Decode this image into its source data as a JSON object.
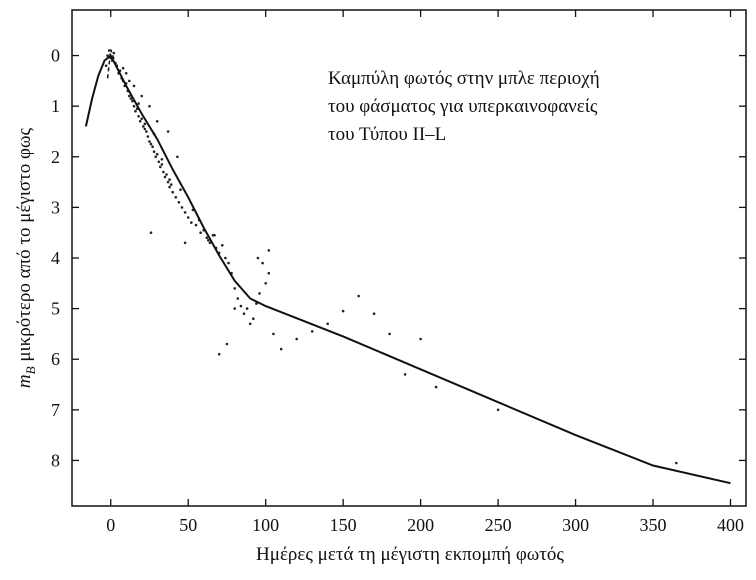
{
  "chart_data": {
    "type": "scatter",
    "title": "",
    "annotation": [
      "Καμπύλη φωτός στην μπλε περιοχή",
      "του φάσματος για υπερκαινοφανείς",
      "του Τύπου II–L"
    ],
    "xlabel": "Ημέρες μετά τη μέγιστη εκπομπή φωτός",
    "ylabel_main": "m",
    "ylabel_sub": "B",
    "ylabel_rest": " μικρότερο από το μέγιστο φως",
    "xlim": [
      -25,
      410
    ],
    "ylim": [
      -0.9,
      8.9
    ],
    "y_inverted": true,
    "grid": false,
    "x_ticks": [
      0,
      50,
      100,
      150,
      200,
      250,
      300,
      350,
      400
    ],
    "x_tick_labels": [
      "0",
      "50",
      "100",
      "150",
      "200",
      "250",
      "300",
      "350",
      "400"
    ],
    "y_ticks": [
      0,
      1,
      2,
      3,
      4,
      5,
      6,
      7,
      8
    ],
    "y_tick_labels": [
      "0",
      "1",
      "2",
      "3",
      "4",
      "5",
      "6",
      "7",
      "8"
    ],
    "series": [
      {
        "kind": "curve",
        "x": [
          -16,
          -12,
          -8,
          -4,
          0,
          5,
          10,
          20,
          30,
          40,
          50,
          60,
          70,
          80,
          90,
          100,
          150,
          200,
          250,
          300,
          350,
          400
        ],
        "y": [
          1.4,
          0.85,
          0.4,
          0.1,
          0.0,
          0.3,
          0.6,
          1.15,
          1.65,
          2.25,
          2.8,
          3.4,
          3.95,
          4.45,
          4.8,
          4.95,
          5.55,
          6.2,
          6.85,
          7.5,
          8.1,
          8.45
        ]
      },
      {
        "kind": "points",
        "x": [
          -3,
          -2,
          -1,
          0,
          1,
          2,
          3,
          4,
          5,
          6,
          7,
          8,
          9,
          10,
          11,
          12,
          13,
          14,
          15,
          16,
          17,
          18,
          19,
          20,
          21,
          22,
          23,
          24,
          25,
          26,
          27,
          28,
          29,
          30,
          31,
          32,
          33,
          34,
          35,
          36,
          37,
          38,
          39,
          40,
          42,
          44,
          46,
          48,
          50,
          52,
          55,
          58,
          60,
          62,
          64,
          66,
          68,
          70,
          72,
          74,
          76,
          78,
          80,
          82,
          84,
          86,
          88,
          90,
          92,
          94,
          96,
          98,
          100,
          102,
          105,
          110,
          120,
          130,
          140,
          150,
          160,
          170,
          180,
          190,
          200,
          210,
          250,
          365,
          26,
          48,
          70,
          75,
          80,
          95,
          102,
          43,
          37,
          30,
          25,
          20,
          15,
          10,
          8,
          12,
          18,
          22,
          28,
          33,
          38,
          45,
          53,
          57,
          63,
          67
        ],
        "y": [
          0.2,
          0.0,
          -0.1,
          0.05,
          0.1,
          -0.05,
          0.15,
          0.2,
          0.35,
          0.3,
          0.45,
          0.5,
          0.6,
          0.55,
          0.7,
          0.8,
          0.85,
          0.9,
          1.0,
          1.1,
          1.05,
          1.2,
          1.3,
          1.25,
          1.4,
          1.45,
          1.5,
          1.6,
          1.7,
          1.75,
          1.8,
          1.9,
          2.0,
          1.95,
          2.1,
          2.2,
          2.15,
          2.3,
          2.4,
          2.35,
          2.5,
          2.6,
          2.55,
          2.7,
          2.8,
          2.9,
          3.0,
          3.1,
          3.2,
          3.3,
          3.35,
          3.5,
          3.45,
          3.6,
          3.7,
          3.55,
          3.8,
          3.9,
          3.75,
          4.0,
          4.1,
          4.3,
          4.6,
          4.8,
          4.95,
          5.1,
          5.0,
          5.3,
          5.2,
          4.9,
          4.7,
          4.1,
          4.5,
          3.85,
          5.5,
          5.8,
          5.6,
          5.45,
          5.3,
          5.05,
          4.75,
          5.1,
          5.5,
          6.3,
          5.6,
          6.55,
          7.0,
          8.05,
          3.5,
          3.7,
          5.9,
          5.7,
          5.0,
          4.0,
          4.3,
          2.0,
          1.5,
          1.3,
          1.0,
          0.8,
          0.6,
          0.35,
          0.25,
          0.5,
          0.95,
          1.35,
          1.55,
          2.05,
          2.45,
          2.65,
          3.05,
          3.25,
          3.65,
          3.55
        ]
      }
    ]
  }
}
